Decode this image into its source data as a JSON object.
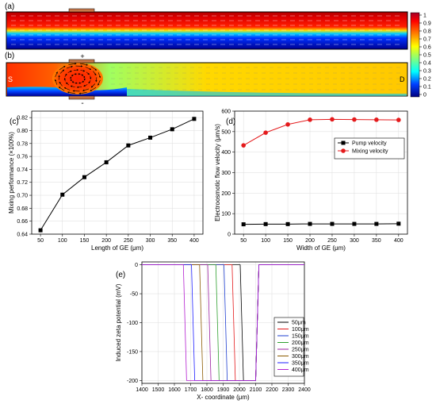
{
  "panels": {
    "a": {
      "label": "(a)"
    },
    "b": {
      "label": "(b)",
      "left_marker": "S",
      "right_marker": "D",
      "top_sign": "+",
      "bottom_sign": "-"
    }
  },
  "colorbar": {
    "ticks": [
      "1",
      "0.9",
      "0.8",
      "0.7",
      "0.6",
      "0.5",
      "0.4",
      "0.3",
      "0.2",
      "0.1",
      "0"
    ],
    "colors": [
      "#a50026",
      "#ff0000",
      "#ff8000",
      "#ffd000",
      "#ffff00",
      "#80ff80",
      "#00ffff",
      "#0080ff",
      "#0000ff",
      "#000080"
    ]
  },
  "chart_data": [
    {
      "id": "c",
      "type": "line",
      "label": "(c)",
      "xlabel": "Length of GE (μm)",
      "ylabel": "Mixing performance (×100%)",
      "xlim": [
        30,
        420
      ],
      "ylim": [
        0.64,
        0.83
      ],
      "xticks": [
        50,
        100,
        150,
        200,
        250,
        300,
        350,
        400
      ],
      "yticks": [
        0.64,
        0.66,
        0.68,
        0.7,
        0.72,
        0.74,
        0.76,
        0.78,
        0.8,
        0.82
      ],
      "ytick_labels": [
        "0.64",
        "0.66",
        "0.68",
        "0.70",
        "0.72",
        "0.74",
        "0.76",
        "0.78",
        "0.80",
        "0.82"
      ],
      "x": [
        50,
        100,
        150,
        200,
        250,
        300,
        350,
        400
      ],
      "series": [
        {
          "values": [
            0.646,
            0.701,
            0.728,
            0.751,
            0.777,
            0.789,
            0.802,
            0.818
          ],
          "color": "#000000",
          "marker": "square"
        }
      ],
      "grid": true
    },
    {
      "id": "d",
      "type": "line",
      "label": "(d)",
      "xlabel": "Width of GE (μm)",
      "ylabel": "Electroosmotic flow velocity (μm/s)",
      "xlim": [
        30,
        420
      ],
      "ylim": [
        0,
        600
      ],
      "xticks": [
        50,
        100,
        150,
        200,
        250,
        300,
        350,
        400
      ],
      "yticks": [
        0,
        100,
        200,
        300,
        400,
        500,
        600
      ],
      "ytick_labels": [
        "0",
        "100",
        "200",
        "300",
        "400",
        "500",
        "600"
      ],
      "x": [
        50,
        100,
        150,
        200,
        250,
        300,
        350,
        400
      ],
      "series": [
        {
          "name": "Pump velocity",
          "values": [
            48,
            49,
            49,
            50,
            50,
            50,
            50,
            51
          ],
          "color": "#000000",
          "marker": "square"
        },
        {
          "name": "Mixing velocity",
          "values": [
            433,
            495,
            535,
            558,
            560,
            559,
            558,
            557
          ],
          "color": "#e41a1c",
          "marker": "circle"
        }
      ],
      "legend": "right-middle",
      "grid": true
    },
    {
      "id": "e",
      "type": "line",
      "label": "(e)",
      "xlabel": "X- coordinate (μm)",
      "ylabel": "Induced zeta potential (mV)",
      "xlim": [
        1400,
        2400
      ],
      "ylim": [
        -205,
        5
      ],
      "xticks": [
        1400,
        1500,
        1600,
        1700,
        1800,
        1900,
        2000,
        2100,
        2200,
        2300,
        2400
      ],
      "yticks": [
        0,
        -50,
        -100,
        -150,
        -200
      ],
      "ytick_labels": [
        "0",
        "-50",
        "-100",
        "-150",
        "-200"
      ],
      "series": [
        {
          "name": "50μm",
          "color": "#000000",
          "x": [
            1400,
            2005,
            2025,
            2100,
            2120,
            2400
          ],
          "values": [
            0,
            0,
            -200,
            -200,
            0,
            0
          ]
        },
        {
          "name": "100μm",
          "color": "#e41a1c",
          "x": [
            1400,
            1955,
            1975,
            2100,
            2120,
            2400
          ],
          "values": [
            0,
            0,
            -200,
            -200,
            0,
            0
          ]
        },
        {
          "name": "150μm",
          "color": "#1f3fd0",
          "x": [
            1400,
            1905,
            1925,
            2100,
            2120,
            2400
          ],
          "values": [
            0,
            0,
            -200,
            -200,
            0,
            0
          ]
        },
        {
          "name": "200μm",
          "color": "#2fa02f",
          "x": [
            1400,
            1855,
            1875,
            2100,
            2120,
            2400
          ],
          "values": [
            0,
            0,
            -200,
            -200,
            0,
            0
          ]
        },
        {
          "name": "250μm",
          "color": "#9b1fa0",
          "x": [
            1400,
            1805,
            1825,
            2100,
            2120,
            2400
          ],
          "values": [
            0,
            0,
            -200,
            -200,
            0,
            0
          ]
        },
        {
          "name": "300μm",
          "color": "#8b5a00",
          "x": [
            1400,
            1755,
            1775,
            2100,
            2120,
            2400
          ],
          "values": [
            0,
            0,
            -200,
            -200,
            0,
            0
          ]
        },
        {
          "name": "350μm",
          "color": "#1f1fff",
          "x": [
            1400,
            1705,
            1725,
            2100,
            2120,
            2400
          ],
          "values": [
            0,
            0,
            -200,
            -200,
            0,
            0
          ]
        },
        {
          "name": "400μm",
          "color": "#b41fd0",
          "x": [
            1400,
            1655,
            1675,
            2100,
            2120,
            2400
          ],
          "values": [
            0,
            0,
            -200,
            -200,
            0,
            0
          ]
        }
      ],
      "legend": "bottom-right",
      "grid": true
    }
  ]
}
